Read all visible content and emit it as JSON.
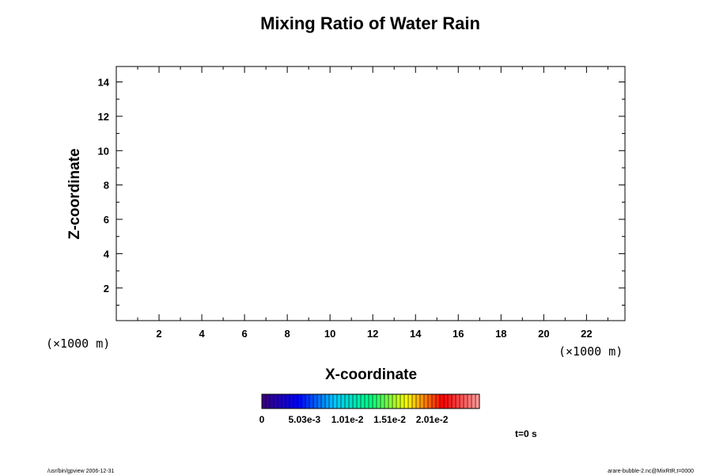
{
  "chart_data": {
    "type": "heatmap",
    "title": "Mixing Ratio of Water Rain",
    "xlabel": "X-coordinate",
    "ylabel": "Z-coordinate",
    "x_unit": "(×1000 m)",
    "y_unit": "(×1000 m)",
    "xlim": [
      0,
      23.8
    ],
    "ylim": [
      0.1,
      14.9
    ],
    "x_major_ticks": [
      2,
      4,
      6,
      8,
      10,
      12,
      14,
      16,
      18,
      20,
      22
    ],
    "y_major_ticks": [
      2,
      4,
      6,
      8,
      10,
      12,
      14
    ],
    "grid": false,
    "values": [],
    "colorbar": {
      "min": 0,
      "max": 0.0257,
      "tick_labels": [
        "0",
        "5.03e-3",
        "1.01e-2",
        "1.51e-2",
        "2.01e-2"
      ],
      "tick_values": [
        0,
        0.00503,
        0.0101,
        0.0151,
        0.0201
      ],
      "colormap": [
        "#3c007d",
        "#0000ff",
        "#00c8ff",
        "#00ff80",
        "#ffff00",
        "#ff0000",
        "#ffa0a0"
      ]
    },
    "time_label": "t=0 s"
  },
  "footer": {
    "left": "/usr/bin/gpview 2006-12-31",
    "right": "arare-bubble-2.nc@MixRtR,t=0000"
  }
}
